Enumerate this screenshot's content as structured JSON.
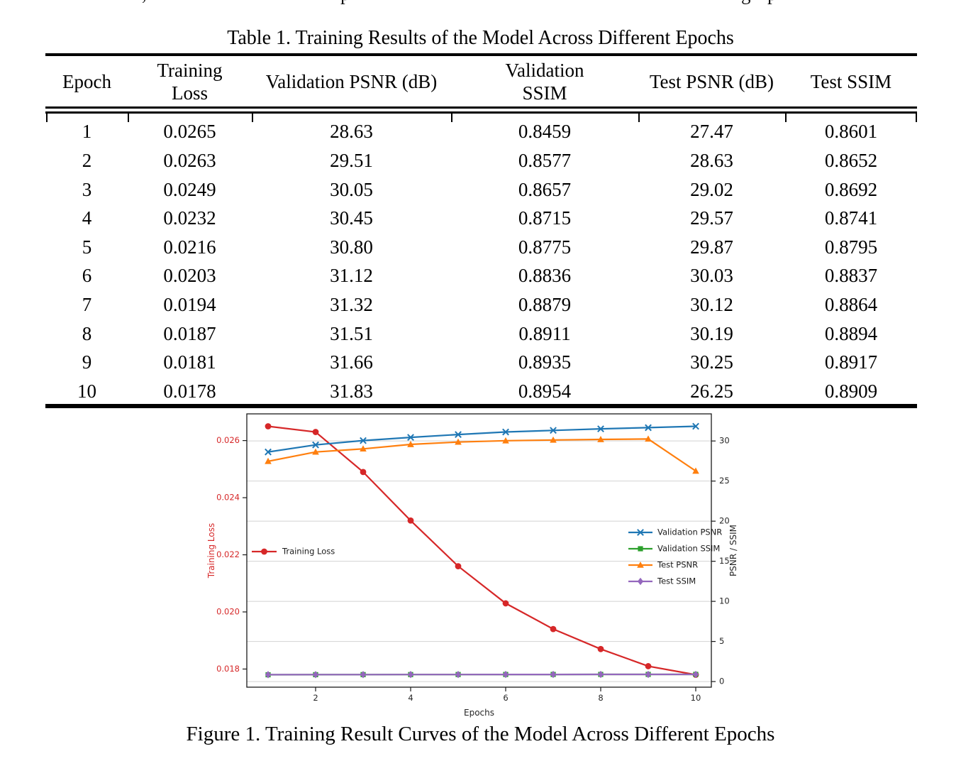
{
  "top_cropped_line": {
    "visible_text": ", p g p",
    "chars": [
      ",",
      "p",
      "g",
      "p"
    ]
  },
  "table": {
    "caption": "Table 1. Training Results of the Model Across Different Epochs",
    "columns": [
      "Epoch",
      "Training Loss",
      "Validation PSNR (dB)",
      "Validation SSIM",
      "Test PSNR (dB)",
      "Test SSIM"
    ],
    "rows": [
      [
        "1",
        "0.0265",
        "28.63",
        "0.8459",
        "27.47",
        "0.8601"
      ],
      [
        "2",
        "0.0263",
        "29.51",
        "0.8577",
        "28.63",
        "0.8652"
      ],
      [
        "3",
        "0.0249",
        "30.05",
        "0.8657",
        "29.02",
        "0.8692"
      ],
      [
        "4",
        "0.0232",
        "30.45",
        "0.8715",
        "29.57",
        "0.8741"
      ],
      [
        "5",
        "0.0216",
        "30.80",
        "0.8775",
        "29.87",
        "0.8795"
      ],
      [
        "6",
        "0.0203",
        "31.12",
        "0.8836",
        "30.03",
        "0.8837"
      ],
      [
        "7",
        "0.0194",
        "31.32",
        "0.8879",
        "30.12",
        "0.8864"
      ],
      [
        "8",
        "0.0187",
        "31.51",
        "0.8911",
        "30.19",
        "0.8894"
      ],
      [
        "9",
        "0.0181",
        "31.66",
        "0.8935",
        "30.25",
        "0.8917"
      ],
      [
        "10",
        "0.0178",
        "31.83",
        "0.8954",
        "26.25",
        "0.8909"
      ]
    ]
  },
  "figure": {
    "caption": "Figure 1. Training Result Curves of the Model Across Different Epochs"
  },
  "chart_data": {
    "type": "line",
    "xlabel": "Epochs",
    "x": [
      1,
      2,
      3,
      4,
      5,
      6,
      7,
      8,
      9,
      10
    ],
    "xticks": [
      "2",
      "4",
      "6",
      "8",
      "10"
    ],
    "left_axis": {
      "label": "Training Loss",
      "color": "#d62728",
      "ticks": [
        "0.018",
        "0.020",
        "0.022",
        "0.024",
        "0.026"
      ],
      "ylim": [
        0.017365,
        0.026935
      ]
    },
    "right_axis": {
      "label": "PSNR / SSIM",
      "color": "#262626",
      "ticks": [
        "0",
        "5",
        "10",
        "15",
        "20",
        "25",
        "30"
      ],
      "ylim": [
        -0.7,
        33.38
      ]
    },
    "grid": {
      "axis": "right",
      "color": "#d2d2d2",
      "orientation": "horizontal"
    },
    "legends": {
      "left_entry": "Training Loss",
      "right_entries": [
        "Validation PSNR",
        "Validation SSIM",
        "Test PSNR",
        "Test SSIM"
      ]
    },
    "series": [
      {
        "name": "Training Loss",
        "axis": "left",
        "color": "#d62728",
        "marker": "circle",
        "values": [
          0.0265,
          0.0263,
          0.0249,
          0.0232,
          0.0216,
          0.0203,
          0.0194,
          0.0187,
          0.0181,
          0.0178
        ]
      },
      {
        "name": "Validation PSNR",
        "axis": "right",
        "color": "#1f77b4",
        "marker": "x",
        "values": [
          28.63,
          29.51,
          30.05,
          30.45,
          30.8,
          31.12,
          31.32,
          31.51,
          31.66,
          31.83
        ]
      },
      {
        "name": "Validation SSIM",
        "axis": "right",
        "color": "#2ca02c",
        "marker": "square",
        "values": [
          0.8459,
          0.8577,
          0.8657,
          0.8715,
          0.8775,
          0.8836,
          0.8879,
          0.8911,
          0.8935,
          0.8954
        ]
      },
      {
        "name": "Test PSNR",
        "axis": "right",
        "color": "#ff7f0e",
        "marker": "triangle",
        "values": [
          27.47,
          28.63,
          29.02,
          29.57,
          29.87,
          30.03,
          30.12,
          30.19,
          30.25,
          26.25
        ]
      },
      {
        "name": "Test SSIM",
        "axis": "right",
        "color": "#9467bd",
        "marker": "diamond",
        "values": [
          0.8601,
          0.8652,
          0.8692,
          0.8741,
          0.8795,
          0.8837,
          0.8864,
          0.8894,
          0.8917,
          0.8909
        ]
      }
    ]
  }
}
